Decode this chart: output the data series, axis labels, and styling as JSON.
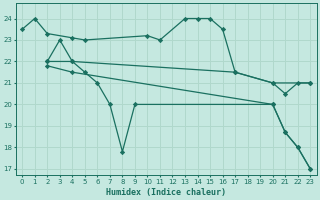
{
  "xlabel": "Humidex (Indice chaleur)",
  "xlim": [
    -0.5,
    23.5
  ],
  "ylim": [
    16.7,
    24.7
  ],
  "yticks": [
    17,
    18,
    19,
    20,
    21,
    22,
    23,
    24
  ],
  "xticks": [
    0,
    1,
    2,
    3,
    4,
    5,
    6,
    7,
    8,
    9,
    10,
    11,
    12,
    13,
    14,
    15,
    16,
    17,
    18,
    19,
    20,
    21,
    22,
    23
  ],
  "bg_color": "#c5e8e0",
  "line_color": "#1a7060",
  "grid_color": "#b0d8cc",
  "line1_x": [
    0,
    1,
    2,
    4,
    5,
    10,
    11,
    13,
    14,
    15,
    16,
    17,
    20,
    21,
    22,
    23
  ],
  "line1_y": [
    23.5,
    24.0,
    23.3,
    23.1,
    23.0,
    23.2,
    23.0,
    24.0,
    24.0,
    24.0,
    23.5,
    21.5,
    21.0,
    20.5,
    21.0,
    21.0
  ],
  "line2_x": [
    2,
    3,
    4,
    5,
    6,
    7,
    8,
    9,
    20,
    21,
    22,
    23
  ],
  "line2_y": [
    22.0,
    23.0,
    22.0,
    21.5,
    21.0,
    20.0,
    17.8,
    20.0,
    20.0,
    18.7,
    18.0,
    17.0
  ],
  "line3_x": [
    2,
    4,
    17,
    20,
    23
  ],
  "line3_y": [
    22.0,
    22.0,
    21.5,
    21.0,
    21.0
  ],
  "line4_x": [
    2,
    4,
    20,
    21,
    22,
    23
  ],
  "line4_y": [
    21.8,
    21.5,
    20.0,
    18.7,
    18.0,
    17.0
  ]
}
